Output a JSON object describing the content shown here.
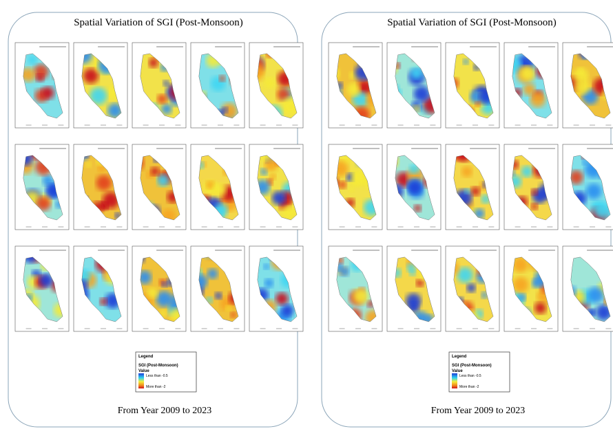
{
  "panels": [
    {
      "title": "Spatial Variation of SGI (Post-Monsoon)",
      "footer": "From Year 2009 to 2023",
      "legend": {
        "heading": "Legend",
        "layer": "SGI (Post-Monsoon)",
        "field": "Value",
        "high": "Less than -0.5",
        "low": "More than -2"
      }
    },
    {
      "title": "Spatial Variation of SGI (Post-Monsoon)",
      "footer": "From Year 2009 to 2023",
      "legend": {
        "heading": "Legend",
        "layer": "SGI (Post-Monsoon)",
        "field": "Value",
        "high": "Less than -0.5",
        "low": "More than -2"
      }
    }
  ]
}
